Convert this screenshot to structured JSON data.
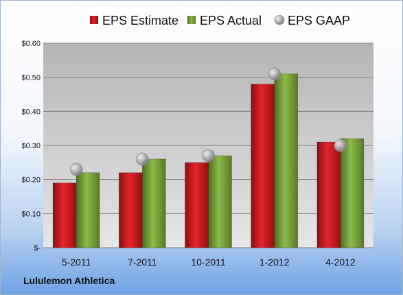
{
  "chart_data": {
    "type": "bar",
    "categories": [
      "5-2011",
      "7-2011",
      "10-2011",
      "1-2012",
      "4-2012"
    ],
    "series": [
      {
        "name": "EPS Estimate",
        "kind": "bar",
        "color": "#c8161d",
        "values": [
          0.19,
          0.22,
          0.25,
          0.48,
          0.31
        ]
      },
      {
        "name": "EPS Actual",
        "kind": "bar",
        "color": "#77a33a",
        "values": [
          0.22,
          0.26,
          0.27,
          0.51,
          0.32
        ]
      },
      {
        "name": "EPS GAAP",
        "kind": "marker",
        "color": "#a6a6a6",
        "values": [
          0.23,
          0.26,
          0.27,
          0.51,
          0.3
        ]
      }
    ],
    "y_ticks": [
      {
        "value": 0,
        "label": "$-"
      },
      {
        "value": 0.1,
        "label": "$0.10"
      },
      {
        "value": 0.2,
        "label": "$0.20"
      },
      {
        "value": 0.3,
        "label": "$0.30"
      },
      {
        "value": 0.4,
        "label": "$0.40"
      },
      {
        "value": 0.5,
        "label": "$0.50"
      },
      {
        "value": 0.6,
        "label": "$0.60"
      }
    ],
    "ylim": [
      0,
      0.6
    ],
    "grid": true,
    "legend_position": "top"
  },
  "company": "Lululemon Athletica"
}
